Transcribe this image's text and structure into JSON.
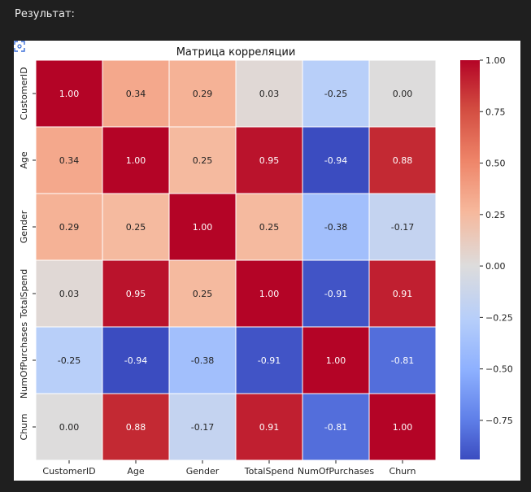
{
  "header": {
    "result_label": "Результат:"
  },
  "chart_data": {
    "type": "heatmap",
    "title": "Матрица корреляции",
    "variables": [
      "CustomerID",
      "Age",
      "Gender",
      "TotalSpend",
      "NumOfPurchases",
      "Churn"
    ],
    "values": [
      [
        1.0,
        0.34,
        0.29,
        0.03,
        -0.25,
        0.0
      ],
      [
        0.34,
        1.0,
        0.25,
        0.95,
        -0.94,
        0.88
      ],
      [
        0.29,
        0.25,
        1.0,
        0.25,
        -0.38,
        -0.17
      ],
      [
        0.03,
        0.95,
        0.25,
        1.0,
        -0.91,
        0.91
      ],
      [
        -0.25,
        -0.94,
        -0.38,
        -0.91,
        1.0,
        -0.81
      ],
      [
        0.0,
        0.88,
        -0.17,
        0.91,
        -0.81,
        1.0
      ]
    ],
    "annotation_format": "0.00",
    "colormap": "coolwarm",
    "color_range": [
      -0.94,
      1.0
    ],
    "colorbar_ticks": [
      1.0,
      0.75,
      0.5,
      0.25,
      0.0,
      -0.25,
      -0.5,
      -0.75
    ],
    "colorbar_tick_labels": [
      "1.00",
      "0.75",
      "0.50",
      "0.25",
      "0.00",
      "−0.25",
      "−0.50",
      "−0.75"
    ],
    "cell_border_color": "#ffffff"
  }
}
